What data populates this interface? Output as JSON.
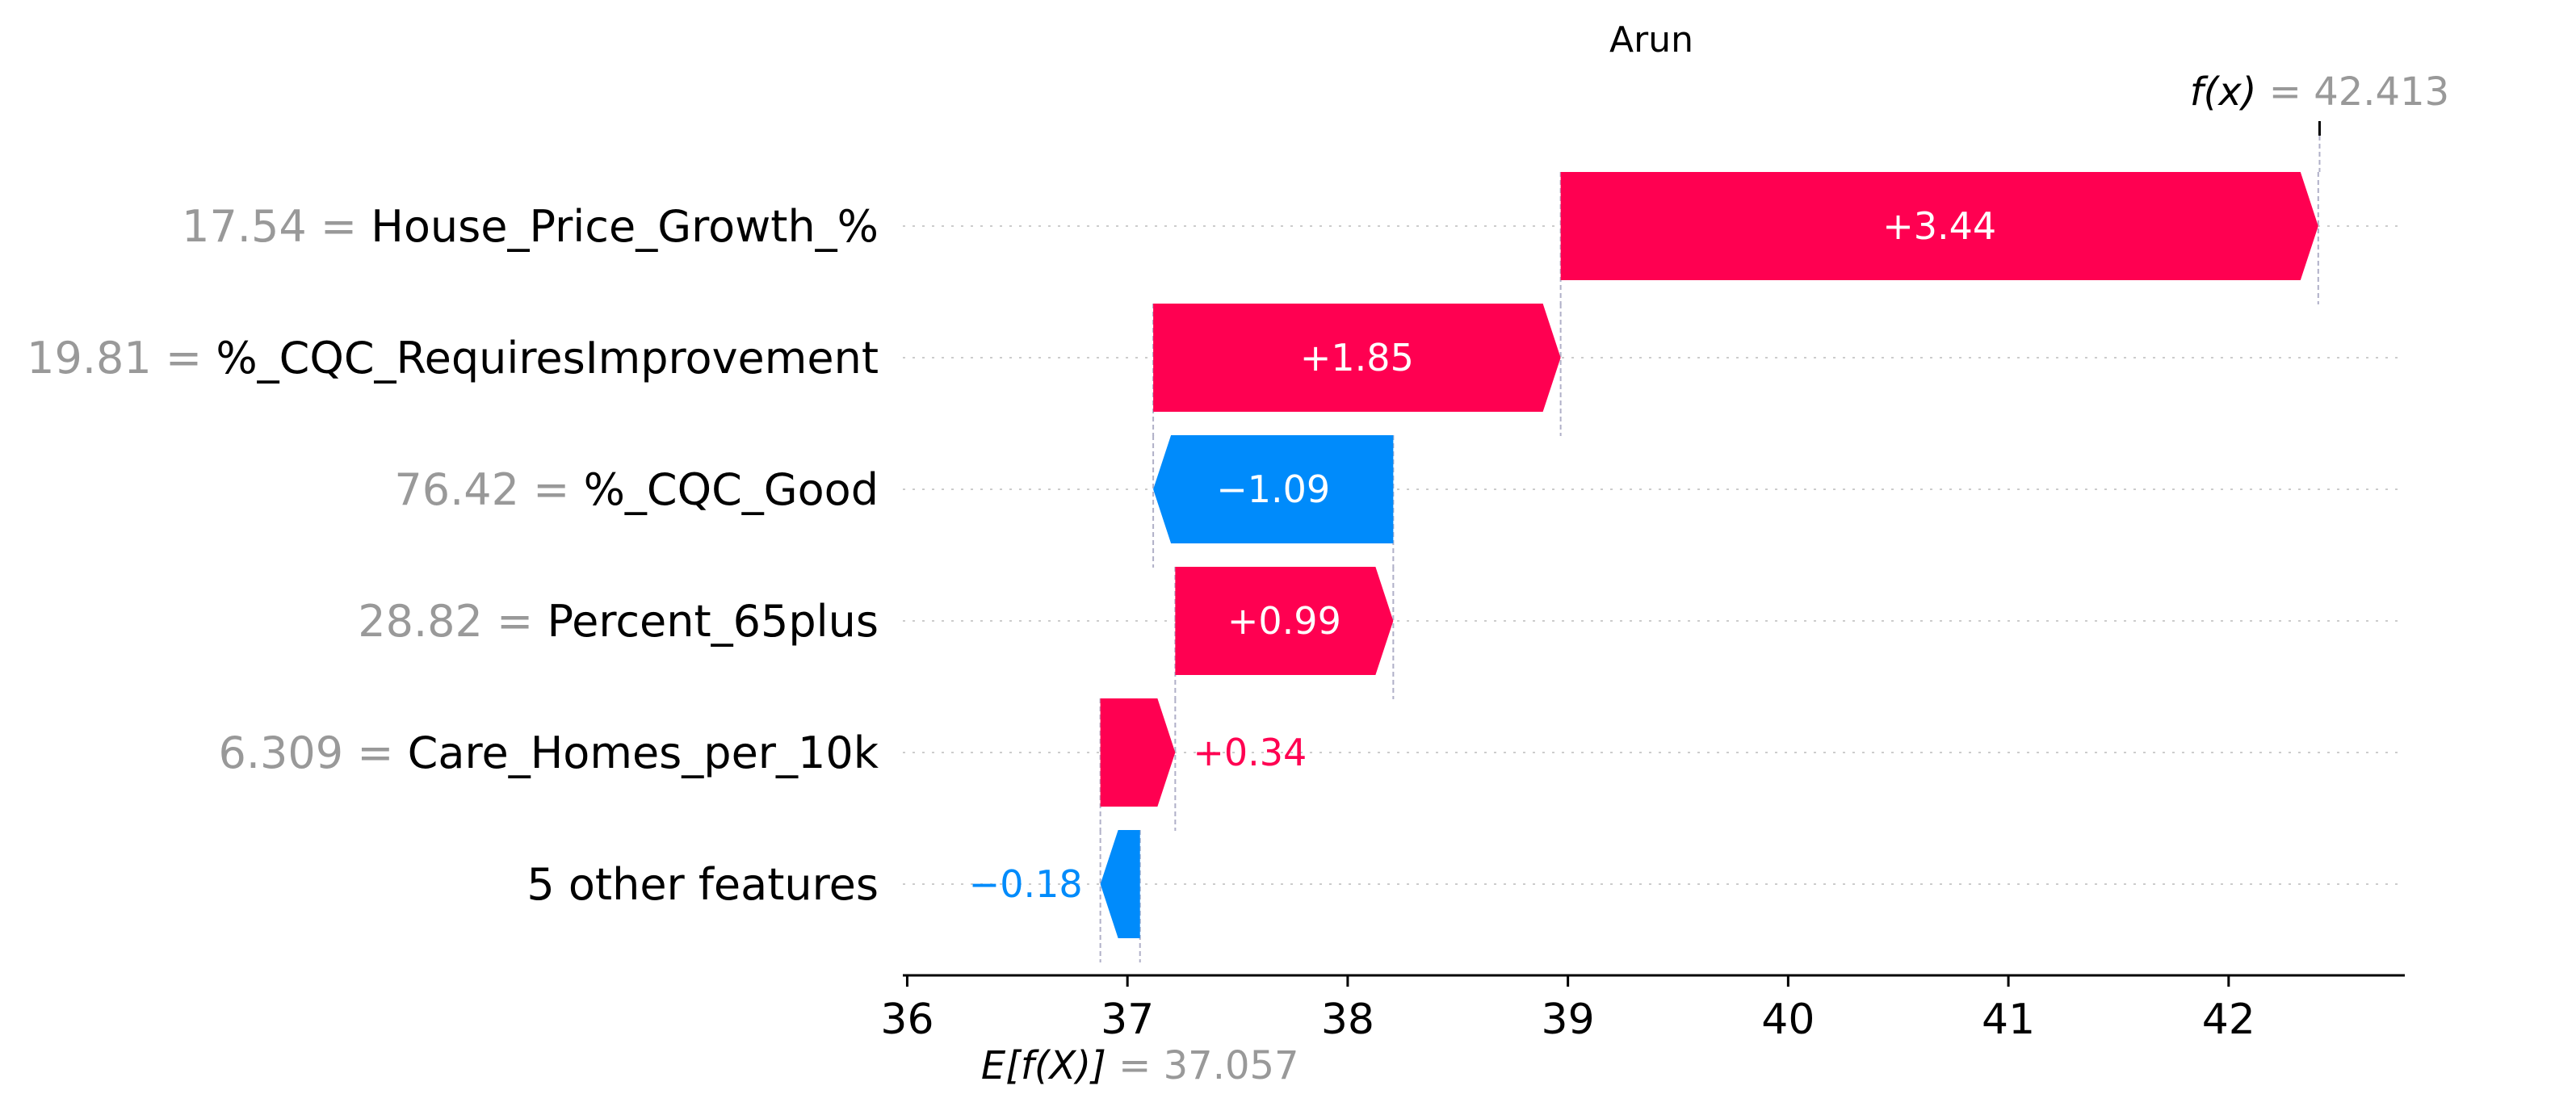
{
  "chart_data": {
    "type": "waterfall",
    "title": "Arun",
    "base_value": 37.057,
    "output_value": 42.413,
    "base_value_label": {
      "italic": "E[f(X)]",
      "value": "= 37.057"
    },
    "output_value_label": {
      "italic": "f(x)",
      "value": "= 42.413"
    },
    "features": [
      {
        "value": "17.54",
        "name": "House_Price_Growth_%",
        "shap": 3.44,
        "label": "+3.44"
      },
      {
        "value": "19.81",
        "name": "%_CQC_RequiresImprovement",
        "shap": 1.85,
        "label": "+1.85"
      },
      {
        "value": "76.42",
        "name": "%_CQC_Good",
        "shap": -1.09,
        "label": "−1.09"
      },
      {
        "value": "28.82",
        "name": "Percent_65plus",
        "shap": 0.99,
        "label": "+0.99"
      },
      {
        "value": "6.309",
        "name": "Care_Homes_per_10k",
        "shap": 0.34,
        "label": "+0.34"
      },
      {
        "value": "",
        "name": "5 other features",
        "shap": -0.18,
        "label": "−0.18"
      }
    ],
    "xticks": [
      36,
      37,
      38,
      39,
      40,
      41,
      42
    ],
    "xlim": [
      35.98,
      42.8
    ],
    "colors": {
      "positive": "#ff0051",
      "negative": "#008bfb",
      "muted": "#999999",
      "axis": "#000000",
      "grid": "#cccccc"
    }
  }
}
